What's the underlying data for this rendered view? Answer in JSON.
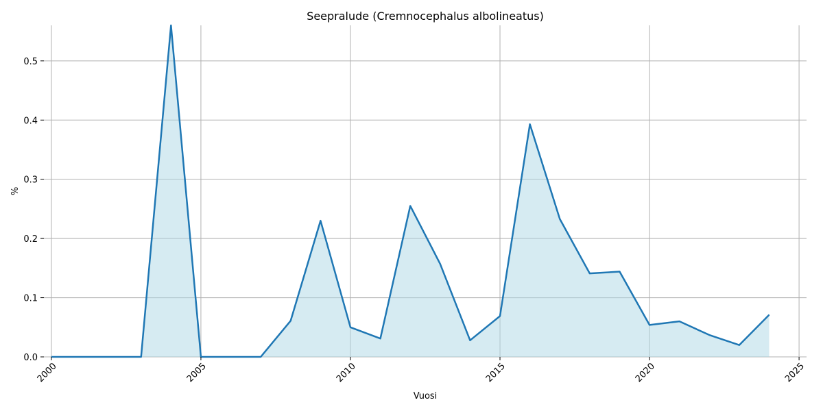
{
  "chart_data": {
    "type": "area",
    "title": "Seepralude (Cremnocephalus albolineatus)",
    "xlabel": "Vuosi",
    "ylabel": "%",
    "xlim": [
      1999.75,
      2025.25
    ],
    "ylim": [
      0,
      0.56
    ],
    "x_ticks": [
      2000,
      2005,
      2010,
      2015,
      2020,
      2025
    ],
    "y_ticks": [
      0.0,
      0.1,
      0.2,
      0.3,
      0.4,
      0.5
    ],
    "x_tick_labels": [
      "2000",
      "2005",
      "2010",
      "2015",
      "2020",
      "2025"
    ],
    "y_tick_labels": [
      "0.0",
      "0.1",
      "0.2",
      "0.3",
      "0.4",
      "0.5"
    ],
    "grid": true,
    "series": [
      {
        "x": [
          2000,
          2001,
          2002,
          2003,
          2004,
          2005,
          2006,
          2007,
          2008,
          2009,
          2010,
          2011,
          2012,
          2013,
          2014,
          2015,
          2016,
          2017,
          2018,
          2019,
          2020,
          2021,
          2022,
          2023,
          2024
        ],
        "values": [
          0,
          0,
          0,
          0,
          0.56,
          0,
          0,
          0,
          0.061,
          0.23,
          0.05,
          0.031,
          0.255,
          0.157,
          0.028,
          0.069,
          0.393,
          0.233,
          0.141,
          0.144,
          0.054,
          0.06,
          0.037,
          0.02,
          0.071
        ]
      }
    ],
    "colors": {
      "line": "#1f77b4",
      "fill": "#add8e6",
      "grid": "#b0b0b0"
    }
  }
}
